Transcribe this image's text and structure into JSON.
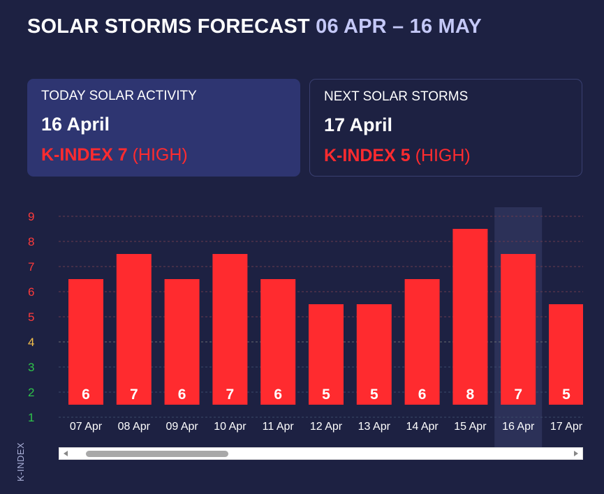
{
  "header": {
    "title": "SOLAR STORMS FORECAST",
    "range": "06 APR – 16 MAY"
  },
  "today": {
    "label": "TODAY SOLAR ACTIVITY",
    "date": "16 April",
    "kindex_label": "K-INDEX 7",
    "level": "(HIGH)"
  },
  "next": {
    "label": "NEXT SOLAR STORMS",
    "date": "17 April",
    "kindex_label": "K-INDEX 5",
    "level": "(HIGH)"
  },
  "chart_data": {
    "type": "bar",
    "categories": [
      "07 Apr",
      "08 Apr",
      "09 Apr",
      "10 Apr",
      "11 Apr",
      "12 Apr",
      "13 Apr",
      "14 Apr",
      "15 Apr",
      "16 Apr",
      "17 Apr"
    ],
    "values": [
      6,
      7,
      6,
      7,
      6,
      5,
      5,
      6,
      8,
      7,
      5
    ],
    "ylabel": "K-INDEX",
    "ylim": [
      1,
      9
    ],
    "yticks": [
      1,
      2,
      3,
      4,
      5,
      6,
      7,
      8,
      9
    ],
    "highlight_category": "16 Apr",
    "colors": {
      "bar": "#ff2b2f",
      "tick_high": "#ff3b3b",
      "tick_moderate": "#f5c04a",
      "tick_low": "#2ec44a",
      "highlight": "#2c3158"
    }
  }
}
